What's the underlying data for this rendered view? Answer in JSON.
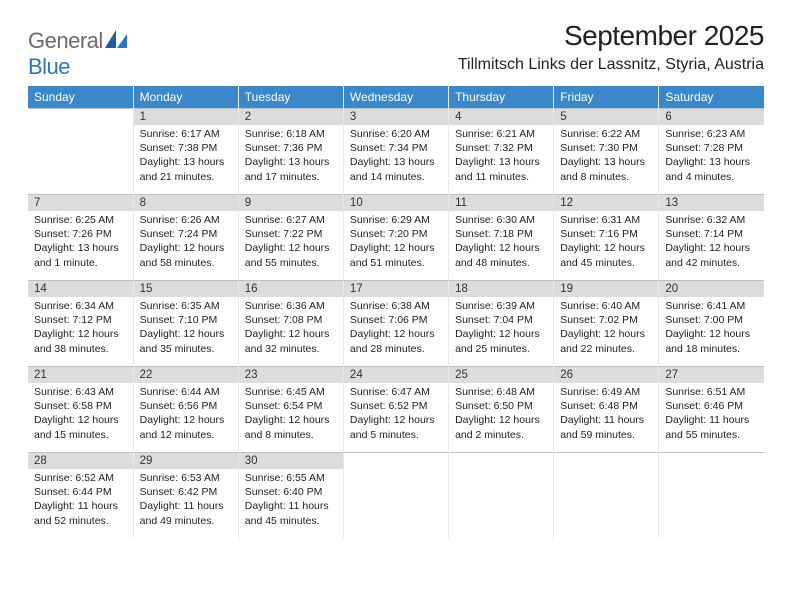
{
  "logo": {
    "top": "General",
    "bottom": "Blue"
  },
  "monthTitle": "September 2025",
  "location": "Tillmitsch Links der Lassnitz, Styria, Austria",
  "colors": {
    "headerBg": "#3a87c9",
    "headerText": "#ffffff",
    "dayNumBg": "#dcdcdc",
    "logoTop": "#6b6b6b",
    "logoBottom": "#2678c4"
  },
  "dayHeaders": [
    "Sunday",
    "Monday",
    "Tuesday",
    "Wednesday",
    "Thursday",
    "Friday",
    "Saturday"
  ],
  "weeks": [
    [
      {
        "num": "",
        "sunrise": "",
        "sunset": "",
        "daylight": ""
      },
      {
        "num": "1",
        "sunrise": "Sunrise: 6:17 AM",
        "sunset": "Sunset: 7:38 PM",
        "daylight": "Daylight: 13 hours and 21 minutes."
      },
      {
        "num": "2",
        "sunrise": "Sunrise: 6:18 AM",
        "sunset": "Sunset: 7:36 PM",
        "daylight": "Daylight: 13 hours and 17 minutes."
      },
      {
        "num": "3",
        "sunrise": "Sunrise: 6:20 AM",
        "sunset": "Sunset: 7:34 PM",
        "daylight": "Daylight: 13 hours and 14 minutes."
      },
      {
        "num": "4",
        "sunrise": "Sunrise: 6:21 AM",
        "sunset": "Sunset: 7:32 PM",
        "daylight": "Daylight: 13 hours and 11 minutes."
      },
      {
        "num": "5",
        "sunrise": "Sunrise: 6:22 AM",
        "sunset": "Sunset: 7:30 PM",
        "daylight": "Daylight: 13 hours and 8 minutes."
      },
      {
        "num": "6",
        "sunrise": "Sunrise: 6:23 AM",
        "sunset": "Sunset: 7:28 PM",
        "daylight": "Daylight: 13 hours and 4 minutes."
      }
    ],
    [
      {
        "num": "7",
        "sunrise": "Sunrise: 6:25 AM",
        "sunset": "Sunset: 7:26 PM",
        "daylight": "Daylight: 13 hours and 1 minute."
      },
      {
        "num": "8",
        "sunrise": "Sunrise: 6:26 AM",
        "sunset": "Sunset: 7:24 PM",
        "daylight": "Daylight: 12 hours and 58 minutes."
      },
      {
        "num": "9",
        "sunrise": "Sunrise: 6:27 AM",
        "sunset": "Sunset: 7:22 PM",
        "daylight": "Daylight: 12 hours and 55 minutes."
      },
      {
        "num": "10",
        "sunrise": "Sunrise: 6:29 AM",
        "sunset": "Sunset: 7:20 PM",
        "daylight": "Daylight: 12 hours and 51 minutes."
      },
      {
        "num": "11",
        "sunrise": "Sunrise: 6:30 AM",
        "sunset": "Sunset: 7:18 PM",
        "daylight": "Daylight: 12 hours and 48 minutes."
      },
      {
        "num": "12",
        "sunrise": "Sunrise: 6:31 AM",
        "sunset": "Sunset: 7:16 PM",
        "daylight": "Daylight: 12 hours and 45 minutes."
      },
      {
        "num": "13",
        "sunrise": "Sunrise: 6:32 AM",
        "sunset": "Sunset: 7:14 PM",
        "daylight": "Daylight: 12 hours and 42 minutes."
      }
    ],
    [
      {
        "num": "14",
        "sunrise": "Sunrise: 6:34 AM",
        "sunset": "Sunset: 7:12 PM",
        "daylight": "Daylight: 12 hours and 38 minutes."
      },
      {
        "num": "15",
        "sunrise": "Sunrise: 6:35 AM",
        "sunset": "Sunset: 7:10 PM",
        "daylight": "Daylight: 12 hours and 35 minutes."
      },
      {
        "num": "16",
        "sunrise": "Sunrise: 6:36 AM",
        "sunset": "Sunset: 7:08 PM",
        "daylight": "Daylight: 12 hours and 32 minutes."
      },
      {
        "num": "17",
        "sunrise": "Sunrise: 6:38 AM",
        "sunset": "Sunset: 7:06 PM",
        "daylight": "Daylight: 12 hours and 28 minutes."
      },
      {
        "num": "18",
        "sunrise": "Sunrise: 6:39 AM",
        "sunset": "Sunset: 7:04 PM",
        "daylight": "Daylight: 12 hours and 25 minutes."
      },
      {
        "num": "19",
        "sunrise": "Sunrise: 6:40 AM",
        "sunset": "Sunset: 7:02 PM",
        "daylight": "Daylight: 12 hours and 22 minutes."
      },
      {
        "num": "20",
        "sunrise": "Sunrise: 6:41 AM",
        "sunset": "Sunset: 7:00 PM",
        "daylight": "Daylight: 12 hours and 18 minutes."
      }
    ],
    [
      {
        "num": "21",
        "sunrise": "Sunrise: 6:43 AM",
        "sunset": "Sunset: 6:58 PM",
        "daylight": "Daylight: 12 hours and 15 minutes."
      },
      {
        "num": "22",
        "sunrise": "Sunrise: 6:44 AM",
        "sunset": "Sunset: 6:56 PM",
        "daylight": "Daylight: 12 hours and 12 minutes."
      },
      {
        "num": "23",
        "sunrise": "Sunrise: 6:45 AM",
        "sunset": "Sunset: 6:54 PM",
        "daylight": "Daylight: 12 hours and 8 minutes."
      },
      {
        "num": "24",
        "sunrise": "Sunrise: 6:47 AM",
        "sunset": "Sunset: 6:52 PM",
        "daylight": "Daylight: 12 hours and 5 minutes."
      },
      {
        "num": "25",
        "sunrise": "Sunrise: 6:48 AM",
        "sunset": "Sunset: 6:50 PM",
        "daylight": "Daylight: 12 hours and 2 minutes."
      },
      {
        "num": "26",
        "sunrise": "Sunrise: 6:49 AM",
        "sunset": "Sunset: 6:48 PM",
        "daylight": "Daylight: 11 hours and 59 minutes."
      },
      {
        "num": "27",
        "sunrise": "Sunrise: 6:51 AM",
        "sunset": "Sunset: 6:46 PM",
        "daylight": "Daylight: 11 hours and 55 minutes."
      }
    ],
    [
      {
        "num": "28",
        "sunrise": "Sunrise: 6:52 AM",
        "sunset": "Sunset: 6:44 PM",
        "daylight": "Daylight: 11 hours and 52 minutes."
      },
      {
        "num": "29",
        "sunrise": "Sunrise: 6:53 AM",
        "sunset": "Sunset: 6:42 PM",
        "daylight": "Daylight: 11 hours and 49 minutes."
      },
      {
        "num": "30",
        "sunrise": "Sunrise: 6:55 AM",
        "sunset": "Sunset: 6:40 PM",
        "daylight": "Daylight: 11 hours and 45 minutes."
      },
      {
        "num": "",
        "sunrise": "",
        "sunset": "",
        "daylight": ""
      },
      {
        "num": "",
        "sunrise": "",
        "sunset": "",
        "daylight": ""
      },
      {
        "num": "",
        "sunrise": "",
        "sunset": "",
        "daylight": ""
      },
      {
        "num": "",
        "sunrise": "",
        "sunset": "",
        "daylight": ""
      }
    ]
  ]
}
